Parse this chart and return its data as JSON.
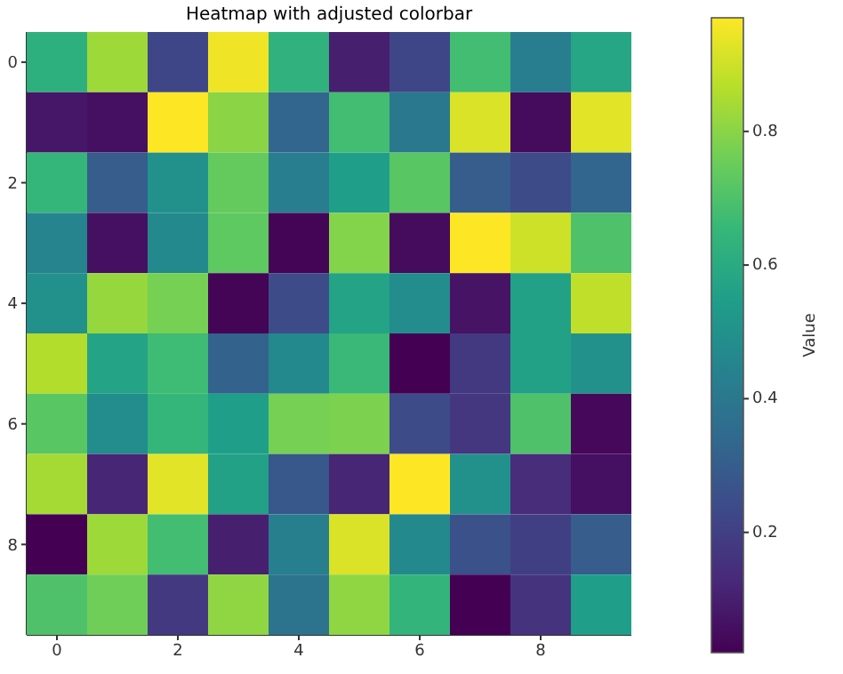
{
  "chart_data": {
    "type": "heatmap",
    "title": "Heatmap with adjusted colorbar",
    "clabel": "Value",
    "categories": [
      "0",
      null,
      "2",
      null,
      "4",
      null,
      "6",
      null,
      "8",
      null
    ],
    "y_categories": [
      "0",
      null,
      "2",
      null,
      "4",
      null,
      "6",
      null,
      "8",
      null
    ],
    "cells": [
      [
        0.62,
        0.83,
        0.22,
        0.95,
        0.63,
        0.1,
        0.22,
        0.68,
        0.42,
        0.58
      ],
      [
        0.08,
        0.06,
        0.97,
        0.8,
        0.33,
        0.68,
        0.4,
        0.92,
        0.05,
        0.93
      ],
      [
        0.65,
        0.3,
        0.5,
        0.74,
        0.42,
        0.55,
        0.72,
        0.3,
        0.24,
        0.33
      ],
      [
        0.45,
        0.06,
        0.47,
        0.73,
        0.03,
        0.79,
        0.05,
        0.97,
        0.9,
        0.7
      ],
      [
        0.5,
        0.82,
        0.77,
        0.03,
        0.24,
        0.57,
        0.48,
        0.07,
        0.56,
        0.88
      ],
      [
        0.86,
        0.57,
        0.67,
        0.32,
        0.47,
        0.66,
        0.02,
        0.18,
        0.56,
        0.5
      ],
      [
        0.72,
        0.48,
        0.65,
        0.55,
        0.77,
        0.78,
        0.24,
        0.17,
        0.7,
        0.04
      ],
      [
        0.84,
        0.12,
        0.93,
        0.56,
        0.28,
        0.12,
        0.97,
        0.5,
        0.14,
        0.06
      ],
      [
        0.02,
        0.83,
        0.68,
        0.1,
        0.43,
        0.92,
        0.47,
        0.26,
        0.2,
        0.3
      ],
      [
        0.7,
        0.76,
        0.18,
        0.81,
        0.38,
        0.81,
        0.64,
        0.02,
        0.16,
        0.55
      ]
    ],
    "clim": [
      0.02,
      0.97
    ],
    "cticks": [
      0.2,
      0.4,
      0.6,
      0.8
    ]
  }
}
